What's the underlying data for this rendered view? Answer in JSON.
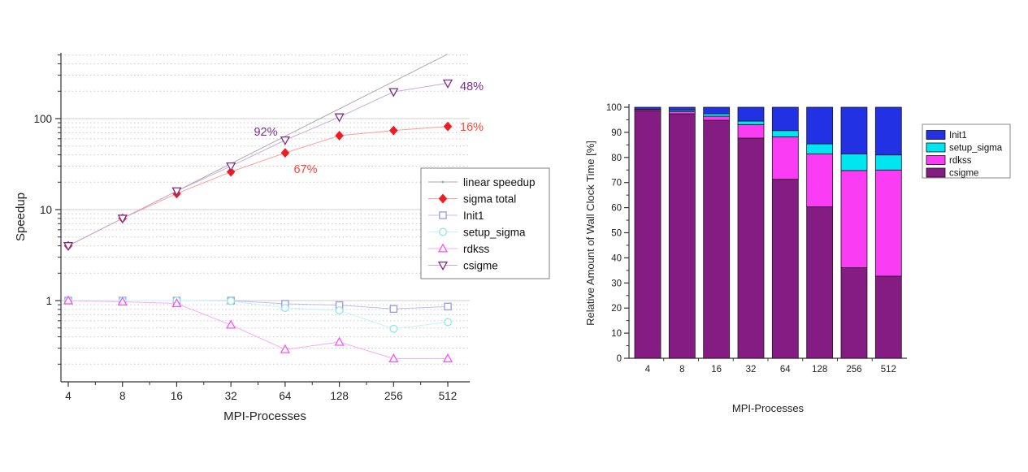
{
  "page": {
    "background": "#ffffff"
  },
  "chart_data": [
    {
      "type": "line",
      "title": "",
      "xlabel": "MPI-Processes",
      "ylabel": "Speedup",
      "xscale": "log2",
      "yscale": "log10",
      "x": [
        4,
        8,
        16,
        32,
        64,
        128,
        256,
        512
      ],
      "x_tick_labels": [
        "4",
        "8",
        "16",
        "32",
        "64",
        "128",
        "256",
        "512"
      ],
      "y_tick_labels": [
        "1",
        "10",
        "100"
      ],
      "yticks": [
        1,
        10,
        100
      ],
      "ylim": [
        0.13,
        530
      ],
      "grid": "log major solid + minor dotted",
      "legend_position": "right-middle-inside",
      "series": [
        {
          "name": "linear speedup",
          "marker": "dot",
          "show_plot_markers": false,
          "marker_color": "#ababab",
          "line_color": "#ababab",
          "values": [
            4,
            8,
            16,
            32,
            64,
            128,
            256,
            512
          ]
        },
        {
          "name": "sigma total",
          "marker": "diamond-filled",
          "marker_color": "#ee1c23",
          "line_color": "#ff9d9d",
          "values": [
            4,
            8,
            15,
            26,
            42,
            65,
            74,
            82
          ]
        },
        {
          "name": "Init1",
          "marker": "square-open",
          "marker_color": "#989ae0",
          "line_color": "#bdbeee",
          "values": [
            1.0,
            1.0,
            1.0,
            1.0,
            0.92,
            0.89,
            0.81,
            0.86
          ]
        },
        {
          "name": "setup_sigma",
          "marker": "circle-open",
          "marker_color": "#8fe6ee",
          "line_color": "#c2f3f7",
          "values": [
            1.0,
            1.0,
            1.0,
            0.99,
            0.83,
            0.78,
            0.49,
            0.58
          ]
        },
        {
          "name": "rdkss",
          "marker": "triangle-up-open",
          "marker_color": "#f456f4",
          "line_color": "#fcaaf3",
          "values": [
            1.0,
            0.97,
            0.93,
            0.54,
            0.29,
            0.35,
            0.23,
            0.23
          ]
        },
        {
          "name": "csigme",
          "marker": "triangle-down-open",
          "marker_color": "#7c2e8c",
          "line_color": "#c9add7",
          "values": [
            4,
            8,
            16,
            30,
            58,
            104,
            197,
            245
          ]
        }
      ],
      "legend_entries": [
        "linear speedup",
        "sigma total",
        "Init1",
        "setup_sigma",
        "rdkss",
        "csigme"
      ],
      "annotations": [
        {
          "text": "92%",
          "color": "#7a2d8e",
          "anchor": "middle",
          "px": [
            327,
            162
          ]
        },
        {
          "text": "67%",
          "color": "#ff4433",
          "anchor": "middle",
          "px": [
            376,
            208
          ]
        },
        {
          "text": "48%",
          "color": "#7a2d8e",
          "anchor": "start",
          "px": [
            566,
            106
          ]
        },
        {
          "text": "16%",
          "color": "#ff4433",
          "anchor": "start",
          "px": [
            566,
            156
          ]
        }
      ]
    },
    {
      "type": "bar",
      "stacked": true,
      "title": "",
      "xlabel": "MPI-Processes",
      "ylabel": "Relative Amount of Wall Clock Time [%]",
      "categories": [
        "4",
        "8",
        "16",
        "32",
        "64",
        "128",
        "256",
        "512"
      ],
      "ylim": [
        0,
        100
      ],
      "ytick_step": 10,
      "y_tick_labels": [
        "0",
        "10",
        "20",
        "30",
        "40",
        "50",
        "60",
        "70",
        "80",
        "90",
        "100"
      ],
      "grid": "off",
      "legend_position": "right-top-outside",
      "stack_order_bottom_to_top": [
        "csigme",
        "rdkss",
        "setup_sigma",
        "Init1"
      ],
      "series": [
        {
          "name": "Init1",
          "color": "#2231e3",
          "values": [
            0.8,
            1.2,
            2.6,
            5.5,
            9.3,
            14.6,
            18.6,
            19.0
          ]
        },
        {
          "name": "setup_sigma",
          "color": "#00e6f0",
          "values": [
            0.2,
            0.5,
            1.0,
            1.4,
            2.5,
            4.0,
            6.6,
            6.0
          ]
        },
        {
          "name": "rdkss",
          "color": "#fa3cf5",
          "values": [
            0.5,
            0.9,
            1.6,
            5.4,
            16.9,
            21.1,
            38.7,
            42.3
          ]
        },
        {
          "name": "csigme",
          "color": "#841c84",
          "values": [
            98.5,
            97.4,
            94.8,
            87.7,
            71.3,
            60.3,
            36.1,
            32.7
          ]
        }
      ],
      "legend_entries": [
        "Init1",
        "setup_sigma",
        "rdkss",
        "csigme"
      ]
    }
  ]
}
